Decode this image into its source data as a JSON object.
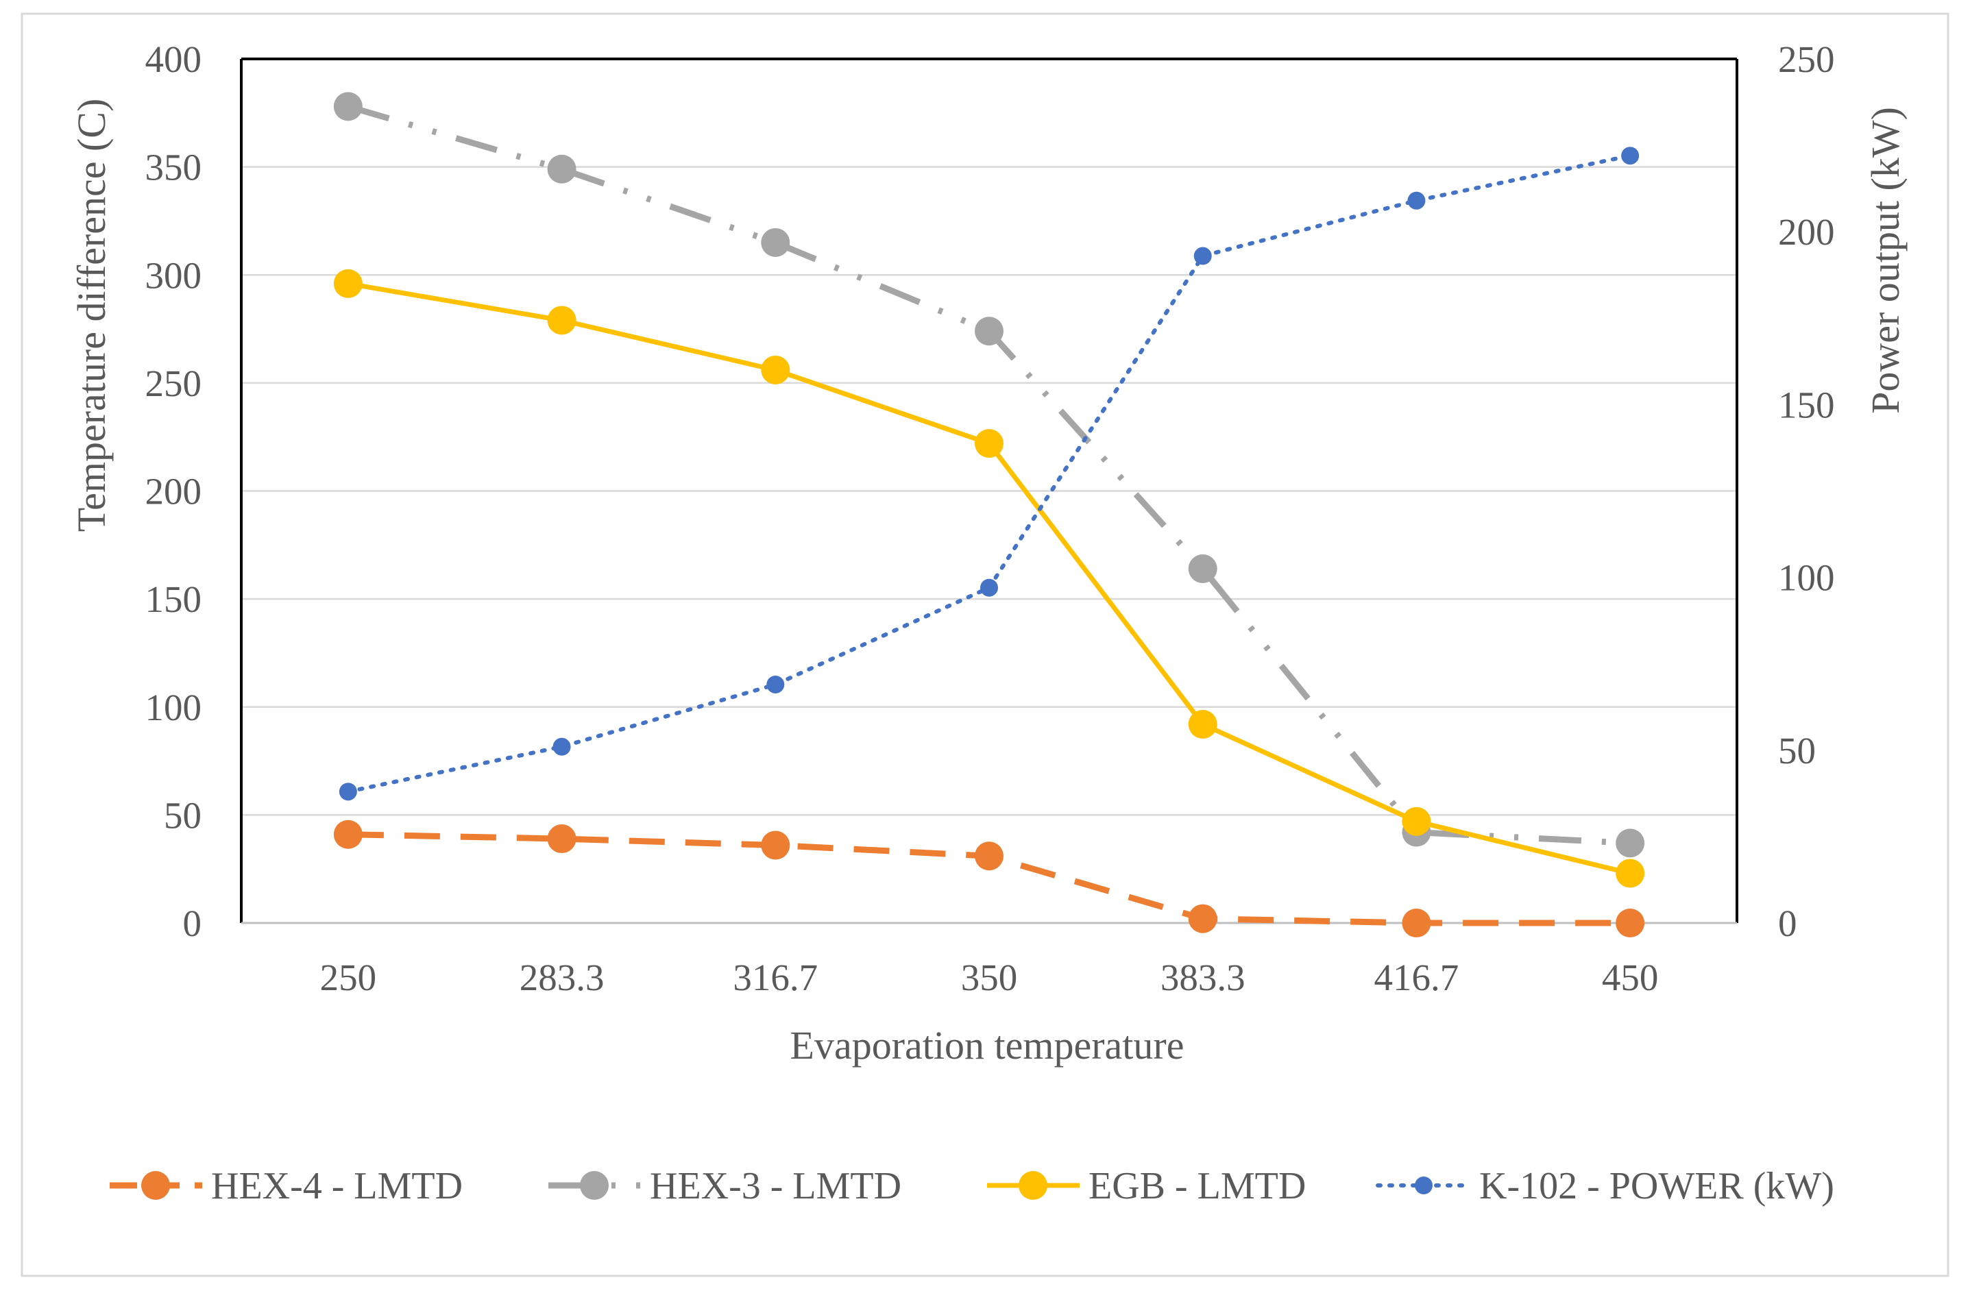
{
  "chart_data": {
    "type": "line",
    "title": "",
    "xlabel": "Evaporation temperature",
    "ylabel": "Temperature difference (C)",
    "y2label": "Power output (kW)",
    "categories": [
      "250",
      "283.3",
      "316.7",
      "350",
      "383.3",
      "416.7",
      "450"
    ],
    "ylim": [
      0,
      400
    ],
    "y2lim": [
      0,
      250
    ],
    "y_ticks": [
      "0",
      "50",
      "100",
      "150",
      "200",
      "250",
      "300",
      "350",
      "400"
    ],
    "y2_ticks": [
      "0",
      "50",
      "100",
      "150",
      "200",
      "250"
    ],
    "grid": true,
    "legend_position": "bottom",
    "series": [
      {
        "name": "HEX-4 - LMTD",
        "axis": "left",
        "color": "#ED7D31",
        "style": "dashed",
        "marker": "circle-large",
        "values": [
          41,
          39,
          36,
          31,
          2,
          0,
          0
        ]
      },
      {
        "name": "HEX-3 - LMTD",
        "axis": "left",
        "color": "#A5A5A5",
        "style": "dash-dot-dot",
        "marker": "circle-large",
        "values": [
          378,
          349,
          315,
          274,
          164,
          42,
          37
        ]
      },
      {
        "name": "EGB - LMTD",
        "axis": "left",
        "color": "#FFC000",
        "style": "solid",
        "marker": "circle-large",
        "values": [
          296,
          279,
          256,
          222,
          92,
          47,
          23
        ]
      },
      {
        "name": "K-102 - POWER (kW)",
        "axis": "right",
        "color": "#4472C4",
        "style": "dotted",
        "marker": "circle-small",
        "values": [
          38,
          51,
          69,
          97,
          193,
          209,
          222
        ]
      }
    ]
  }
}
